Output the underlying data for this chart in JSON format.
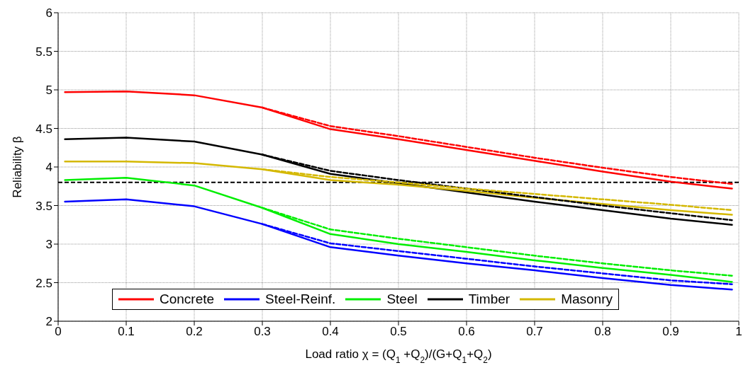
{
  "chart_data": {
    "type": "line",
    "xlabel": "Load ratio χ = (Q$_{1}$ +Q$_{2}$)/(G+Q$_{1}$+Q$_{2}$)",
    "ylabel": "Reliability β",
    "x": [
      0.01,
      0.1,
      0.2,
      0.3,
      0.4,
      0.5,
      0.6,
      0.7,
      0.8,
      0.9,
      0.99
    ],
    "series": [
      {
        "name": "Concrete",
        "color": "#ff0000",
        "line_style": "solid",
        "values": [
          4.97,
          4.98,
          4.93,
          4.77,
          4.49,
          4.36,
          4.22,
          4.08,
          3.94,
          3.81,
          3.72
        ]
      },
      {
        "name": "Steel-Reinf.",
        "color": "#0000ff",
        "line_style": "solid",
        "values": [
          3.55,
          3.58,
          3.49,
          3.26,
          2.96,
          2.85,
          2.75,
          2.66,
          2.56,
          2.47,
          2.41
        ]
      },
      {
        "name": "Steel",
        "color": "#00ee00",
        "line_style": "solid",
        "values": [
          3.83,
          3.86,
          3.76,
          3.47,
          3.13,
          3.0,
          2.9,
          2.79,
          2.69,
          2.6,
          2.51
        ]
      },
      {
        "name": "Timber",
        "color": "#000000",
        "line_style": "solid",
        "values": [
          4.36,
          4.38,
          4.33,
          4.16,
          3.91,
          3.79,
          3.67,
          3.55,
          3.44,
          3.33,
          3.25
        ]
      },
      {
        "name": "Masonry",
        "color": "#d4b800",
        "line_style": "solid",
        "values": [
          4.07,
          4.07,
          4.05,
          3.97,
          3.83,
          3.77,
          3.69,
          3.6,
          3.52,
          3.44,
          3.38
        ]
      },
      {
        "color": "#ff0000",
        "line_style": "dashed",
        "x": [
          0.3,
          0.4,
          0.5,
          0.6,
          0.7,
          0.8,
          0.9,
          0.99
        ],
        "values": [
          4.77,
          4.53,
          4.4,
          4.26,
          4.12,
          3.99,
          3.87,
          3.78
        ]
      },
      {
        "color": "#0000ff",
        "line_style": "dashed",
        "x": [
          0.3,
          0.4,
          0.5,
          0.6,
          0.7,
          0.8,
          0.9,
          0.99
        ],
        "values": [
          3.26,
          3.01,
          2.91,
          2.81,
          2.71,
          2.62,
          2.53,
          2.48
        ]
      },
      {
        "color": "#00ee00",
        "line_style": "dashed",
        "x": [
          0.3,
          0.4,
          0.5,
          0.6,
          0.7,
          0.8,
          0.9,
          0.99
        ],
        "values": [
          3.47,
          3.19,
          3.07,
          2.96,
          2.85,
          2.75,
          2.66,
          2.59
        ]
      },
      {
        "color": "#000000",
        "line_style": "dashed",
        "x": [
          0.3,
          0.4,
          0.5,
          0.6,
          0.7,
          0.8,
          0.9,
          0.99
        ],
        "values": [
          4.16,
          3.95,
          3.83,
          3.72,
          3.61,
          3.5,
          3.4,
          3.31
        ]
      },
      {
        "color": "#d4b800",
        "line_style": "dashed",
        "x": [
          0.3,
          0.4,
          0.5,
          0.6,
          0.7,
          0.8,
          0.9,
          0.99
        ],
        "values": [
          3.97,
          3.87,
          3.8,
          3.72,
          3.65,
          3.58,
          3.51,
          3.44
        ]
      }
    ],
    "ref_lines": [
      {
        "axis": "y",
        "value": 3.8,
        "color": "#000000",
        "line_style": "dashed"
      }
    ],
    "xlim": [
      0,
      1
    ],
    "xticks": [
      0,
      0.1,
      0.2,
      0.3,
      0.4,
      0.5,
      0.6,
      0.7,
      0.8,
      0.9,
      1
    ],
    "ylim": [
      2,
      6
    ],
    "yticks": [
      2,
      2.5,
      3,
      3.5,
      4,
      4.5,
      5,
      5.5,
      6
    ],
    "grid": true,
    "legend": "bottom",
    "marker": "none"
  }
}
